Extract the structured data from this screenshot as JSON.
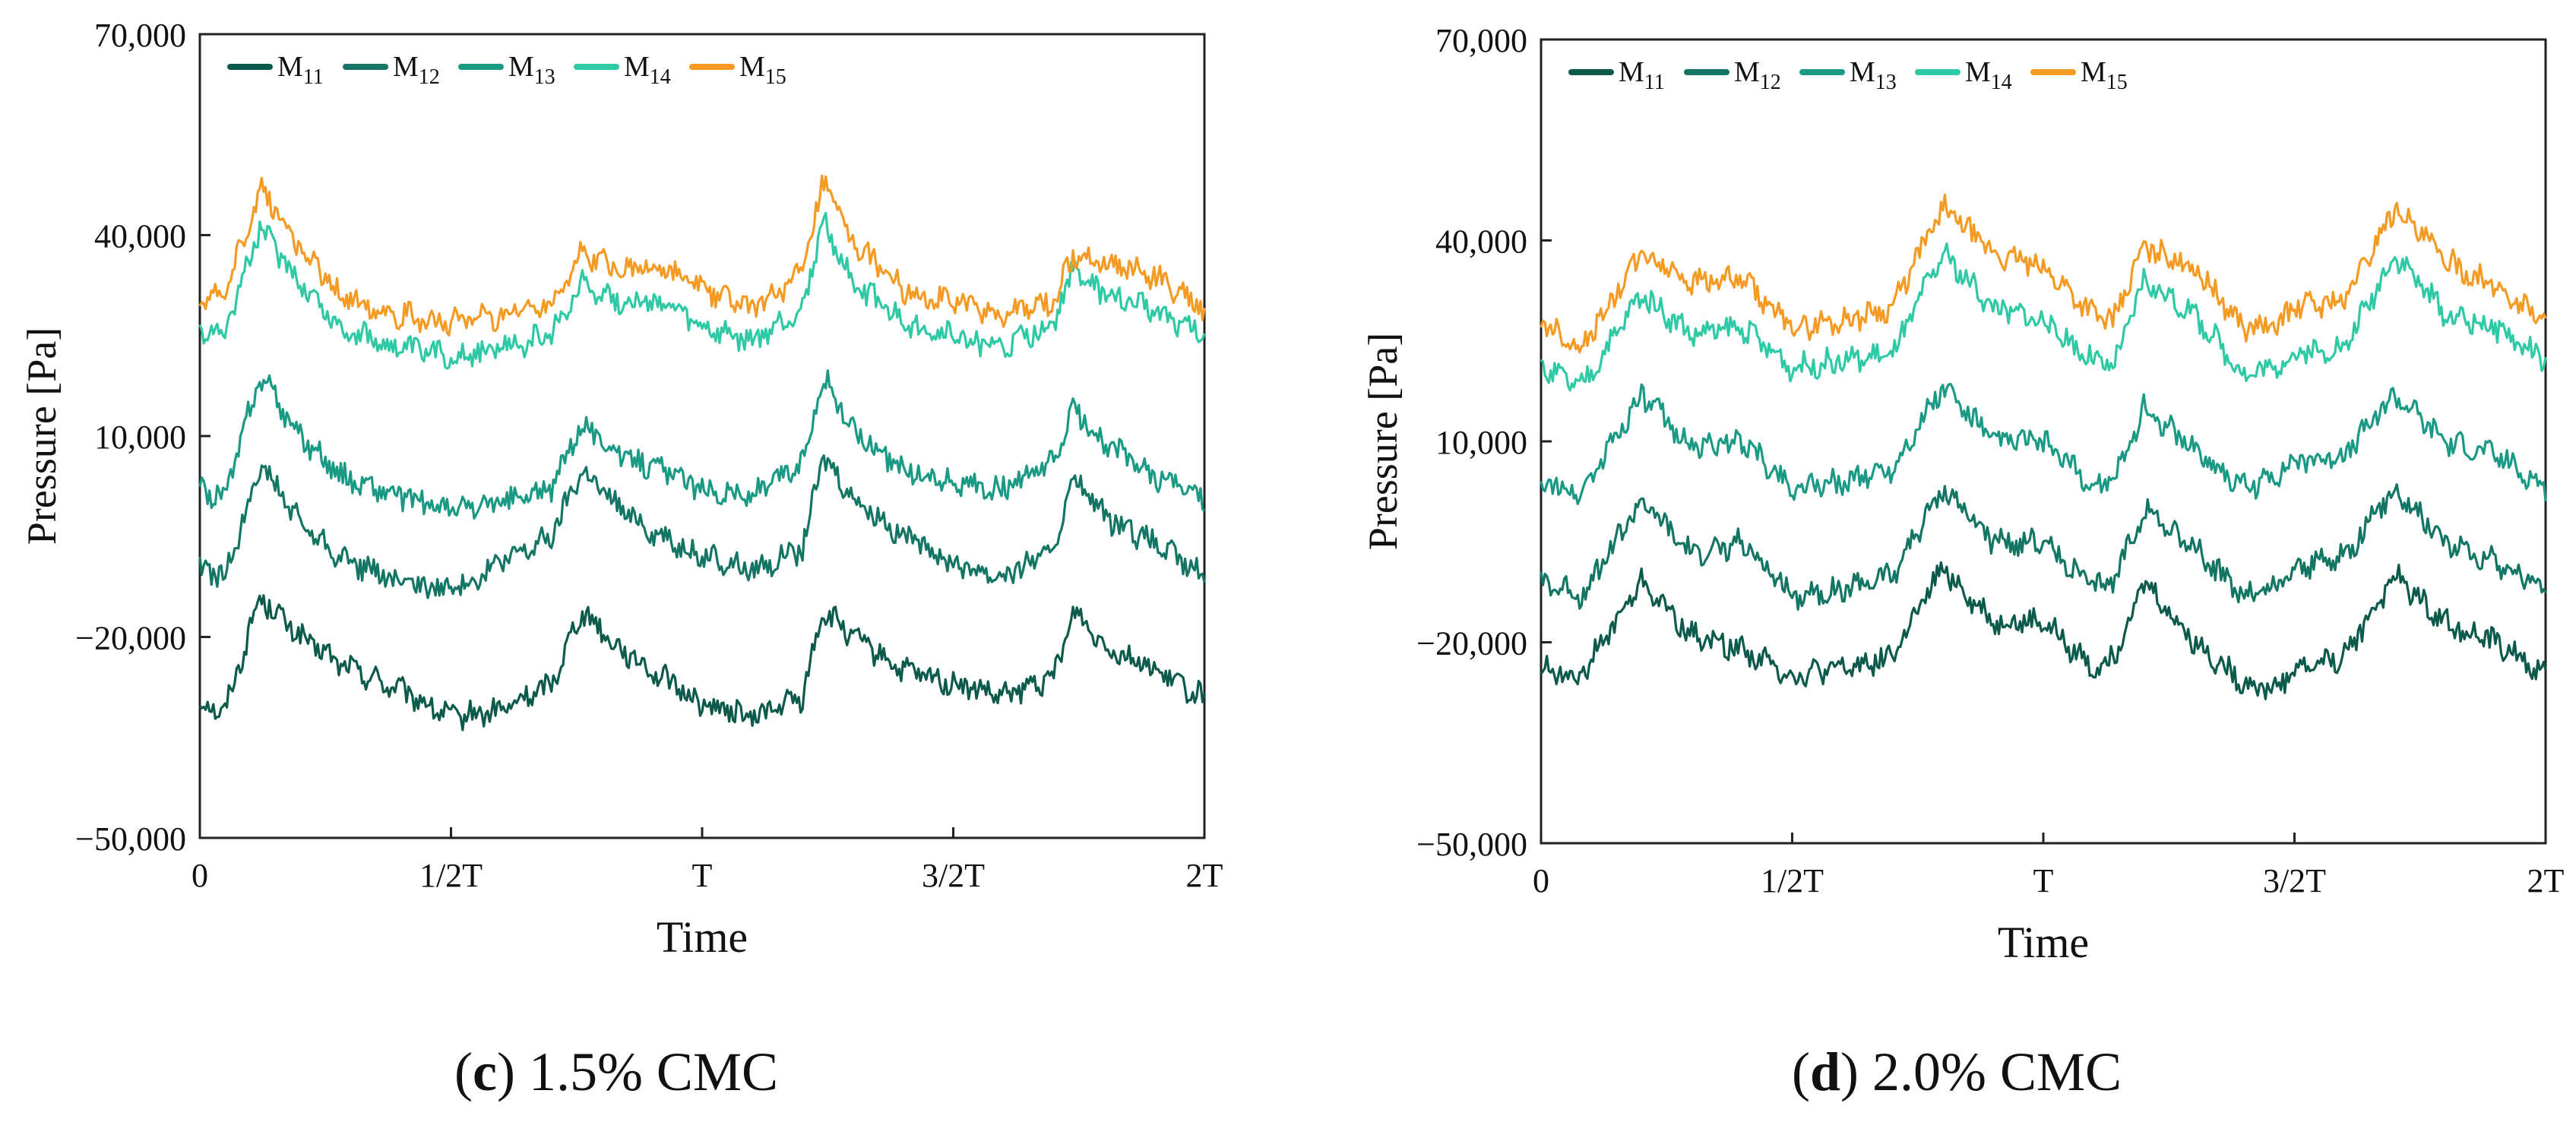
{
  "chart_data": [
    {
      "type": "line",
      "panel_label": "c",
      "caption": "1.5% CMC",
      "xlabel": "Time",
      "ylabel": "Pressure [Pa]",
      "x_ticks": [
        "0",
        "1/2T",
        "T",
        "3/2T",
        "2T"
      ],
      "y_ticks": [
        "70,000",
        "40,000",
        "10,000",
        "−20,000",
        "−50,000"
      ],
      "ylim": [
        -50000,
        70000
      ],
      "legend": "top-left",
      "grid": false,
      "x_units": "fraction of 2T",
      "series": [
        {
          "name": "M11",
          "sub": "11",
          "color": "#0b5a4c",
          "x": [
            0,
            0.025,
            0.06,
            0.1,
            0.14,
            0.2,
            0.25,
            0.3,
            0.35,
            0.38,
            0.42,
            0.46,
            0.5,
            0.55,
            0.6,
            0.62,
            0.65,
            0.7,
            0.75,
            0.8,
            0.85,
            0.87,
            0.9,
            0.95,
            1.0
          ],
          "y": [
            -30000,
            -31000,
            -14000,
            -20000,
            -24000,
            -28000,
            -32000,
            -31000,
            -27000,
            -16000,
            -22000,
            -26000,
            -30000,
            -32000,
            -29000,
            -16000,
            -20000,
            -25000,
            -27000,
            -29000,
            -26000,
            -16000,
            -21000,
            -25000,
            -29000
          ]
        },
        {
          "name": "M12",
          "sub": "12",
          "color": "#137564",
          "x": [
            0,
            0.025,
            0.06,
            0.1,
            0.14,
            0.2,
            0.25,
            0.3,
            0.35,
            0.38,
            0.42,
            0.46,
            0.5,
            0.55,
            0.6,
            0.62,
            0.65,
            0.7,
            0.75,
            0.8,
            0.85,
            0.87,
            0.9,
            0.95,
            1.0
          ],
          "y": [
            -10000,
            -11000,
            6000,
            -3000,
            -8000,
            -12000,
            -13000,
            -9000,
            -5000,
            5000,
            -1000,
            -5000,
            -8000,
            -10000,
            -7000,
            7000,
            1000,
            -5000,
            -9000,
            -11000,
            -7000,
            4000,
            -2000,
            -6000,
            -11000
          ]
        },
        {
          "name": "M13",
          "sub": "13",
          "color": "#1a9a84",
          "x": [
            0,
            0.025,
            0.06,
            0.1,
            0.14,
            0.2,
            0.25,
            0.3,
            0.35,
            0.38,
            0.42,
            0.46,
            0.5,
            0.55,
            0.6,
            0.62,
            0.65,
            0.7,
            0.75,
            0.8,
            0.85,
            0.87,
            0.9,
            0.95,
            1.0
          ],
          "y": [
            2000,
            1000,
            19000,
            10000,
            4000,
            1000,
            -1000,
            0,
            2000,
            12000,
            7000,
            5000,
            2000,
            1000,
            6000,
            19000,
            11000,
            5000,
            3000,
            2000,
            6000,
            14000,
            9000,
            4000,
            1000
          ]
        },
        {
          "name": "M14",
          "sub": "14",
          "color": "#2fc9a6",
          "x": [
            0,
            0.025,
            0.06,
            0.1,
            0.14,
            0.2,
            0.25,
            0.3,
            0.35,
            0.38,
            0.42,
            0.46,
            0.5,
            0.55,
            0.6,
            0.62,
            0.65,
            0.7,
            0.75,
            0.8,
            0.85,
            0.87,
            0.9,
            0.95,
            1.0
          ],
          "y": [
            25000,
            26000,
            41000,
            33000,
            26000,
            23000,
            22000,
            23000,
            25000,
            33000,
            30000,
            30000,
            26000,
            24000,
            29000,
            42000,
            33000,
            27000,
            25000,
            23000,
            27000,
            35000,
            31000,
            29000,
            25000
          ]
        },
        {
          "name": "M15",
          "sub": "15",
          "color": "#f59a23",
          "x": [
            0,
            0.025,
            0.06,
            0.1,
            0.14,
            0.2,
            0.25,
            0.3,
            0.35,
            0.38,
            0.42,
            0.46,
            0.5,
            0.55,
            0.6,
            0.62,
            0.65,
            0.7,
            0.75,
            0.8,
            0.85,
            0.87,
            0.9,
            0.95,
            1.0
          ],
          "y": [
            30000,
            31000,
            47000,
            38000,
            31000,
            28000,
            27000,
            28000,
            30000,
            37000,
            35000,
            35000,
            32000,
            29000,
            34000,
            48000,
            39000,
            32000,
            30000,
            28000,
            30000,
            37000,
            36000,
            34000,
            29000
          ]
        }
      ]
    },
    {
      "type": "line",
      "panel_label": "d",
      "caption": "2.0% CMC",
      "xlabel": "Time",
      "ylabel": "Pressure [Pa]",
      "x_ticks": [
        "0",
        "1/2T",
        "T",
        "3/2T",
        "2T"
      ],
      "y_ticks": [
        "70,000",
        "40,000",
        "10,000",
        "−20,000",
        "−50,000"
      ],
      "ylim": [
        -50000,
        70000
      ],
      "legend": "top-left",
      "grid": false,
      "x_units": "fraction of 2T",
      "series": [
        {
          "name": "M11",
          "sub": "11",
          "color": "#0b5a4c",
          "x": [
            0,
            0.04,
            0.1,
            0.15,
            0.2,
            0.25,
            0.3,
            0.35,
            0.4,
            0.45,
            0.5,
            0.55,
            0.57,
            0.6,
            0.65,
            0.7,
            0.73,
            0.75,
            0.8,
            0.85,
            0.9,
            0.95,
            1.0
          ],
          "y": [
            -24000,
            -25000,
            -11000,
            -19000,
            -21000,
            -25000,
            -24000,
            -22000,
            -9000,
            -17000,
            -17000,
            -24000,
            -22000,
            -11000,
            -20000,
            -26000,
            -27000,
            -24000,
            -22000,
            -10000,
            -17000,
            -20000,
            -25000
          ]
        },
        {
          "name": "M12",
          "sub": "12",
          "color": "#137564",
          "x": [
            0,
            0.04,
            0.1,
            0.15,
            0.2,
            0.25,
            0.3,
            0.35,
            0.4,
            0.45,
            0.5,
            0.55,
            0.57,
            0.6,
            0.65,
            0.7,
            0.73,
            0.75,
            0.8,
            0.85,
            0.9,
            0.95,
            1.0
          ],
          "y": [
            -11000,
            -13000,
            1000,
            -7000,
            -5000,
            -13000,
            -12000,
            -10000,
            3000,
            -5000,
            -5000,
            -12000,
            -11000,
            0,
            -6000,
            -13000,
            -12000,
            -9000,
            -7000,
            3000,
            -5000,
            -8000,
            -12000
          ]
        },
        {
          "name": "M13",
          "sub": "13",
          "color": "#1a9a84",
          "x": [
            0,
            0.04,
            0.1,
            0.15,
            0.2,
            0.25,
            0.3,
            0.35,
            0.4,
            0.45,
            0.5,
            0.55,
            0.57,
            0.6,
            0.65,
            0.7,
            0.73,
            0.75,
            0.8,
            0.85,
            0.9,
            0.95,
            1.0
          ],
          "y": [
            4000,
            2000,
            17000,
            9000,
            10000,
            3000,
            4000,
            6000,
            18000,
            10000,
            10000,
            3000,
            4000,
            15000,
            9000,
            3000,
            5000,
            7000,
            8000,
            17000,
            10000,
            8000,
            3000
          ]
        },
        {
          "name": "M14",
          "sub": "14",
          "color": "#2fc9a6",
          "x": [
            0,
            0.04,
            0.1,
            0.15,
            0.2,
            0.25,
            0.3,
            0.35,
            0.4,
            0.45,
            0.5,
            0.55,
            0.57,
            0.6,
            0.65,
            0.7,
            0.73,
            0.75,
            0.8,
            0.85,
            0.9,
            0.95,
            1.0
          ],
          "y": [
            21000,
            18000,
            32000,
            26000,
            27000,
            21000,
            22000,
            23000,
            38000,
            30000,
            28000,
            22000,
            21000,
            34000,
            29000,
            20000,
            21000,
            23000,
            24000,
            38000,
            29000,
            27000,
            22000
          ]
        },
        {
          "name": "M15",
          "sub": "15",
          "color": "#f59a23",
          "x": [
            0,
            0.04,
            0.1,
            0.15,
            0.2,
            0.25,
            0.3,
            0.35,
            0.4,
            0.45,
            0.5,
            0.55,
            0.57,
            0.6,
            0.65,
            0.7,
            0.73,
            0.75,
            0.8,
            0.85,
            0.9,
            0.95,
            1.0
          ],
          "y": [
            28000,
            24000,
            38000,
            34000,
            34000,
            27000,
            28000,
            30000,
            45000,
            38000,
            36000,
            29000,
            28000,
            39000,
            36000,
            27000,
            27000,
            30000,
            31000,
            45000,
            37000,
            33000,
            28000
          ]
        }
      ]
    }
  ]
}
